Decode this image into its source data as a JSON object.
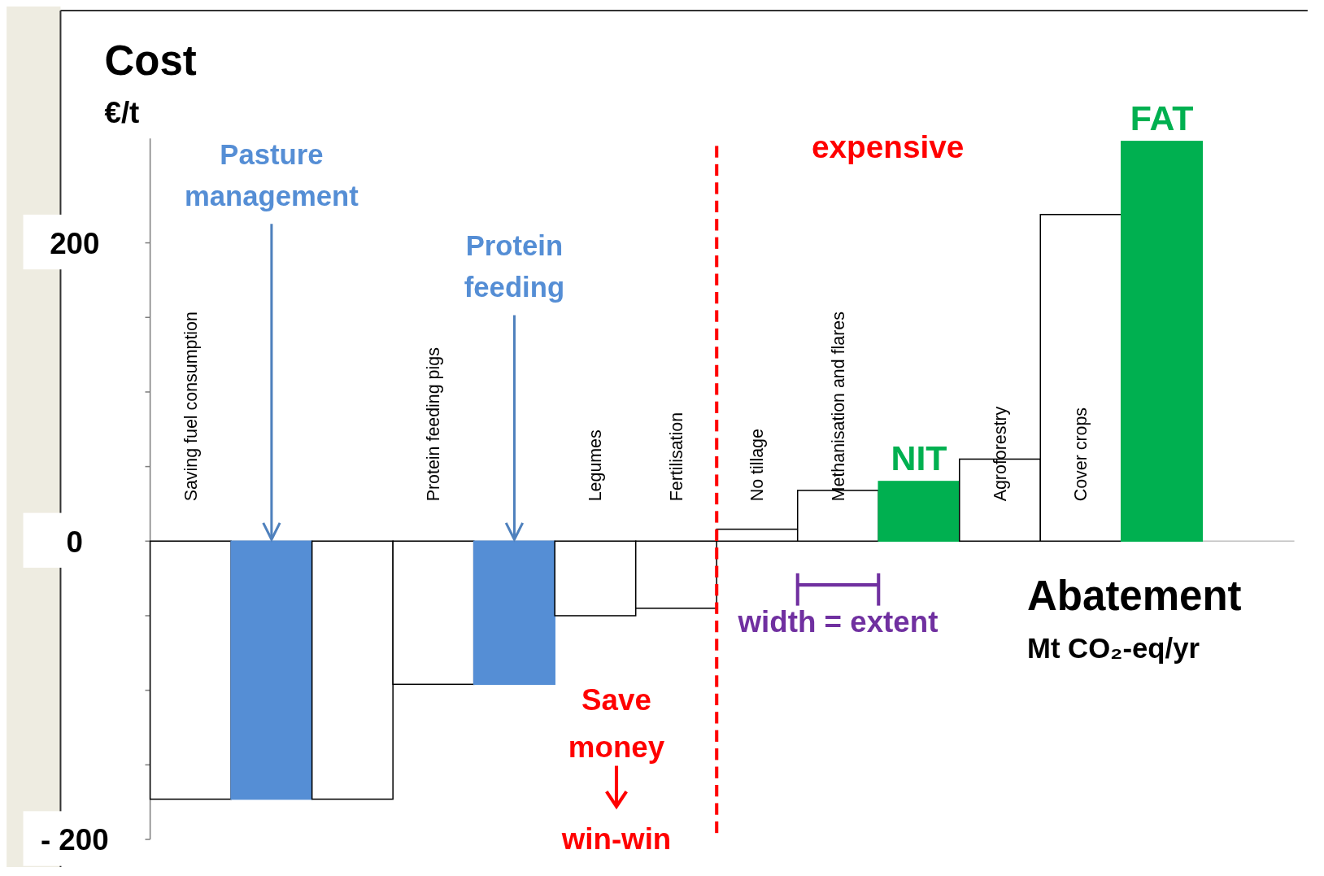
{
  "chart_data": {
    "type": "bar",
    "ylabel": "Cost €/t",
    "xlabel": "Abatement Mt CO₂-eq/yr",
    "categories": [
      "Saving fuel consumption",
      null,
      null,
      "Protein feeding pigs",
      null,
      "Legumes",
      "Fertilisation",
      "No tillage",
      "Methanisation and flares",
      null,
      "Agroforestry",
      "Cover crops",
      null
    ],
    "values": [
      -173,
      -173,
      -173,
      -96,
      -96,
      -50,
      -45,
      8,
      34,
      40,
      55,
      219,
      268
    ],
    "colors": [
      "#ffffff",
      "#558ed5",
      "#ffffff",
      "#ffffff",
      "#558ed5",
      "#ffffff",
      "#ffffff",
      "#ffffff",
      "#ffffff",
      "#00b050",
      "#ffffff",
      "#ffffff",
      "#00b050"
    ],
    "ylim": [
      -200,
      270
    ],
    "yticks": [
      {
        "value": -200,
        "label": "- 200"
      },
      {
        "value": -150,
        "label": null
      },
      {
        "value": -100,
        "label": null
      },
      {
        "value": -50,
        "label": null
      },
      0,
      {
        "value": 50,
        "label": null
      },
      {
        "value": 100,
        "label": null
      },
      {
        "value": 150,
        "label": null
      },
      200
    ],
    "tick_labels": "y",
    "annotations": [
      {
        "text": "Pasture management",
        "y": 0
      },
      {
        "text": "Protein feeding",
        "y": 0
      },
      "expensive",
      "Save money",
      "win-win",
      "width = extent",
      "NIT",
      "FAT"
    ]
  }
}
